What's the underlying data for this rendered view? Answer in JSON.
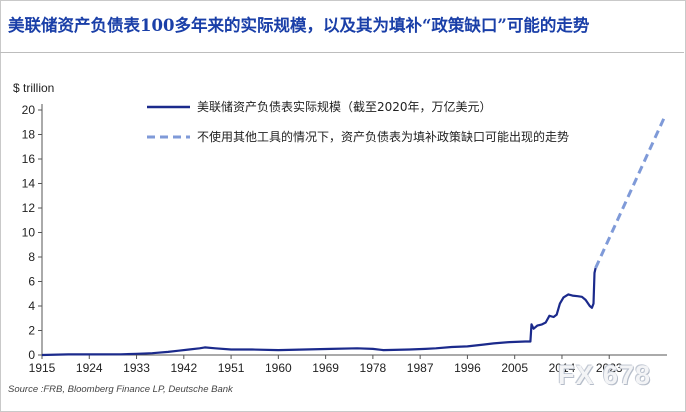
{
  "title": "美联储资产负债表100多年来的实际规模，以及其为填补“政策缺口”可能的走势",
  "watermark": "FX 678",
  "chart_data": {
    "type": "line",
    "title": "美联储资产负债表100多年来的实际规模，以及其为填补“政策缺口”可能的走势",
    "ylabel": "$ trillion",
    "xlabel": "",
    "xlim": [
      1915,
      2034
    ],
    "ylim": [
      0,
      20
    ],
    "x_ticks": [
      1915,
      1924,
      1933,
      1942,
      1951,
      1960,
      1969,
      1978,
      1987,
      1996,
      2005,
      2014,
      2023
    ],
    "y_ticks": [
      0,
      2,
      4,
      6,
      8,
      10,
      12,
      14,
      16,
      18,
      20
    ],
    "grid": false,
    "legend_position": "top",
    "source": "Source :FRB, Bloomberg Finance LP, Deutsche Bank",
    "colors": {
      "actual": "#1b2a8c",
      "projection": "#7f9ad8"
    },
    "series": [
      {
        "name": "美联储资产负债表实际规模（截至2020年，万亿美元）",
        "style": "solid",
        "points": [
          [
            1915,
            0.0
          ],
          [
            1920,
            0.05
          ],
          [
            1925,
            0.05
          ],
          [
            1930,
            0.06
          ],
          [
            1933,
            0.1
          ],
          [
            1936,
            0.15
          ],
          [
            1939,
            0.25
          ],
          [
            1941,
            0.35
          ],
          [
            1943,
            0.45
          ],
          [
            1945,
            0.55
          ],
          [
            1946,
            0.62
          ],
          [
            1948,
            0.55
          ],
          [
            1951,
            0.45
          ],
          [
            1955,
            0.45
          ],
          [
            1960,
            0.4
          ],
          [
            1965,
            0.45
          ],
          [
            1970,
            0.5
          ],
          [
            1975,
            0.55
          ],
          [
            1978,
            0.5
          ],
          [
            1980,
            0.4
          ],
          [
            1985,
            0.45
          ],
          [
            1988,
            0.5
          ],
          [
            1990,
            0.55
          ],
          [
            1993,
            0.65
          ],
          [
            1996,
            0.7
          ],
          [
            1999,
            0.85
          ],
          [
            2001,
            0.95
          ],
          [
            2004,
            1.05
          ],
          [
            2007,
            1.1
          ],
          [
            2008.0,
            1.1
          ],
          [
            2008.2,
            2.5
          ],
          [
            2008.6,
            2.15
          ],
          [
            2009.3,
            2.4
          ],
          [
            2010.2,
            2.5
          ],
          [
            2010.9,
            2.65
          ],
          [
            2011.6,
            3.2
          ],
          [
            2012.4,
            3.1
          ],
          [
            2013.0,
            3.3
          ],
          [
            2013.6,
            4.2
          ],
          [
            2014.3,
            4.7
          ],
          [
            2015.2,
            4.95
          ],
          [
            2016.0,
            4.85
          ],
          [
            2017.0,
            4.8
          ],
          [
            2017.8,
            4.75
          ],
          [
            2018.5,
            4.5
          ],
          [
            2019.3,
            4.0
          ],
          [
            2019.7,
            3.85
          ],
          [
            2020.0,
            4.2
          ],
          [
            2020.2,
            6.7
          ],
          [
            2020.4,
            7.1
          ]
        ]
      },
      {
        "name": "不使用其他工具的情况下，资产负债表为填补政策缺口可能出现的走势",
        "style": "dashed",
        "points": [
          [
            2020.4,
            7.1
          ],
          [
            2033.5,
            19.4
          ]
        ]
      }
    ]
  }
}
